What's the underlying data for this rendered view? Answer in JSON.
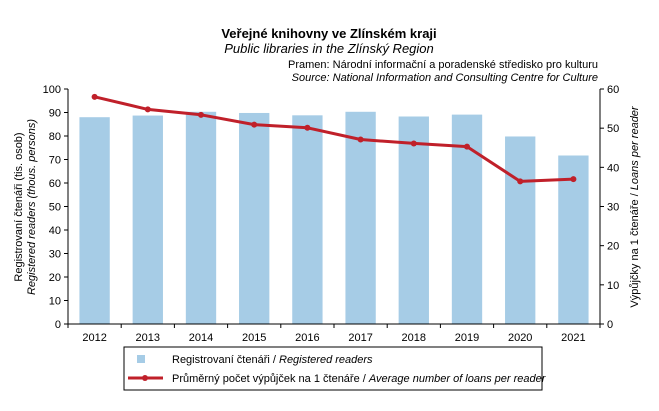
{
  "chart_data": {
    "type": "bar",
    "title": "Veřejné knihovny ve Zlínském kraji",
    "subtitle": "Public libraries in the Zlínský Region",
    "source_cz": "Pramen: Národní informační a poradenské středisko pro kulturu",
    "source_en": "Source: National Information and Consulting Centre for Culture",
    "categories": [
      "2012",
      "2013",
      "2014",
      "2015",
      "2016",
      "2017",
      "2018",
      "2019",
      "2020",
      "2021"
    ],
    "series": [
      {
        "name": "Registrovaní čtenáři / Registered readers",
        "name_cz": "Registrovaní čtenáři / ",
        "name_en": "Registered readers",
        "type": "bar",
        "axis": "left",
        "color": "#a6cce6",
        "values": [
          88,
          88.7,
          90.3,
          89.8,
          88.8,
          90.3,
          88.3,
          89.1,
          79.8,
          71.7
        ]
      },
      {
        "name": "Průměrný počet výpůjček na 1 čtenáře / Average number of loans per reader",
        "name_cz": "Průměrný počet výpůjček na 1 čtenáře / ",
        "name_en": "Average number of loans per reader",
        "type": "line",
        "axis": "right",
        "color": "#c0202a",
        "values": [
          58,
          54.8,
          53.4,
          50.9,
          50.1,
          47.1,
          46.1,
          45.3,
          36.4,
          37
        ]
      }
    ],
    "ylabel_left_cz": "Registrovaní čtenáři (tis. osob)",
    "ylabel_left_en": "Registered readers (thous. persons)",
    "ylabel_right_cz": "Výpůjčky na 1 čtenáře / ",
    "ylabel_right_en": "Loans per reader",
    "y_left": {
      "min": 0,
      "max": 100,
      "step": 10,
      "ticks": [
        "0",
        "10",
        "20",
        "30",
        "40",
        "50",
        "60",
        "70",
        "80",
        "90",
        "100"
      ]
    },
    "y_right": {
      "min": 0,
      "max": 60,
      "step": 10,
      "ticks": [
        "0",
        "10",
        "20",
        "30",
        "40",
        "50",
        "60"
      ]
    },
    "grid": false,
    "legend_position": "bottom"
  }
}
